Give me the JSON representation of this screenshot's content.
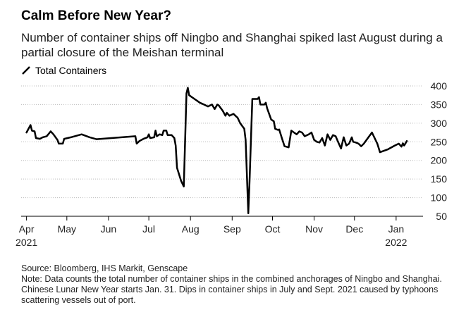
{
  "chart_data": {
    "type": "line",
    "title": "Calm Before New Year?",
    "subtitle": "Number of container ships off Ningbo and Shanghai spiked last August during a partial closure of the Meishan terminal",
    "ylim": [
      50,
      400
    ],
    "yticks": [
      50,
      100,
      150,
      200,
      250,
      300,
      350,
      400
    ],
    "xlim": [
      "2021-03-28",
      "2022-01-21"
    ],
    "xticks": [
      {
        "date": "2021-04-01",
        "label": "Apr",
        "sublabel": "2021"
      },
      {
        "date": "2021-05-01",
        "label": "May",
        "sublabel": ""
      },
      {
        "date": "2021-06-01",
        "label": "Jun",
        "sublabel": ""
      },
      {
        "date": "2021-07-01",
        "label": "Jul",
        "sublabel": ""
      },
      {
        "date": "2021-08-01",
        "label": "Aug",
        "sublabel": ""
      },
      {
        "date": "2021-09-01",
        "label": "Sep",
        "sublabel": ""
      },
      {
        "date": "2021-10-01",
        "label": "Oct",
        "sublabel": ""
      },
      {
        "date": "2021-11-01",
        "label": "Nov",
        "sublabel": ""
      },
      {
        "date": "2021-12-01",
        "label": "Dec",
        "sublabel": ""
      },
      {
        "date": "2022-01-01",
        "label": "Jan",
        "sublabel": "2022"
      }
    ],
    "grid": true,
    "legend_position": "top-left",
    "series": [
      {
        "name": "Total Containers",
        "color": "#000000",
        "points": [
          [
            "2021-04-01",
            275
          ],
          [
            "2021-04-04",
            295
          ],
          [
            "2021-04-05",
            280
          ],
          [
            "2021-04-07",
            278
          ],
          [
            "2021-04-08",
            260
          ],
          [
            "2021-04-11",
            258
          ],
          [
            "2021-04-13",
            262
          ],
          [
            "2021-04-16",
            265
          ],
          [
            "2021-04-19",
            278
          ],
          [
            "2021-04-21",
            270
          ],
          [
            "2021-04-24",
            255
          ],
          [
            "2021-04-25",
            245
          ],
          [
            "2021-04-28",
            245
          ],
          [
            "2021-04-29",
            258
          ],
          [
            "2021-05-04",
            262
          ],
          [
            "2021-05-12",
            270
          ],
          [
            "2021-05-18",
            262
          ],
          [
            "2021-05-23",
            257
          ],
          [
            "2021-06-21",
            265
          ],
          [
            "2021-06-22",
            245
          ],
          [
            "2021-06-24",
            252
          ],
          [
            "2021-06-27",
            258
          ],
          [
            "2021-06-30",
            262
          ],
          [
            "2021-07-01",
            270
          ],
          [
            "2021-07-02",
            260
          ],
          [
            "2021-07-05",
            262
          ],
          [
            "2021-07-06",
            280
          ],
          [
            "2021-07-07",
            265
          ],
          [
            "2021-07-09",
            270
          ],
          [
            "2021-07-11",
            268
          ],
          [
            "2021-07-12",
            280
          ],
          [
            "2021-07-14",
            280
          ],
          [
            "2021-07-15",
            268
          ],
          [
            "2021-07-18",
            268
          ],
          [
            "2021-07-20",
            260
          ],
          [
            "2021-07-21",
            240
          ],
          [
            "2021-07-22",
            180
          ],
          [
            "2021-07-25",
            145
          ],
          [
            "2021-07-27",
            130
          ],
          [
            "2021-07-29",
            380
          ],
          [
            "2021-07-30",
            395
          ],
          [
            "2021-07-31",
            375
          ],
          [
            "2021-08-04",
            365
          ],
          [
            "2021-08-08",
            355
          ],
          [
            "2021-08-11",
            350
          ],
          [
            "2021-08-14",
            345
          ],
          [
            "2021-08-17",
            350
          ],
          [
            "2021-08-19",
            338
          ],
          [
            "2021-08-21",
            350
          ],
          [
            "2021-08-22",
            348
          ],
          [
            "2021-08-25",
            333
          ],
          [
            "2021-08-27",
            320
          ],
          [
            "2021-08-28",
            328
          ],
          [
            "2021-08-30",
            320
          ],
          [
            "2021-09-02",
            325
          ],
          [
            "2021-09-04",
            318
          ],
          [
            "2021-09-05",
            315
          ],
          [
            "2021-09-07",
            300
          ],
          [
            "2021-09-09",
            290
          ],
          [
            "2021-09-10",
            285
          ],
          [
            "2021-09-11",
            255
          ],
          [
            "2021-09-13",
            58
          ],
          [
            "2021-09-14",
            150
          ],
          [
            "2021-09-16",
            365
          ],
          [
            "2021-09-20",
            365
          ],
          [
            "2021-09-21",
            370
          ],
          [
            "2021-09-22",
            350
          ],
          [
            "2021-09-25",
            350
          ],
          [
            "2021-09-26",
            355
          ],
          [
            "2021-09-27",
            340
          ],
          [
            "2021-09-30",
            310
          ],
          [
            "2021-10-02",
            305
          ],
          [
            "2021-10-03",
            285
          ],
          [
            "2021-10-05",
            282
          ],
          [
            "2021-10-06",
            283
          ],
          [
            "2021-10-08",
            260
          ],
          [
            "2021-10-10",
            238
          ],
          [
            "2021-10-13",
            235
          ],
          [
            "2021-10-15",
            280
          ],
          [
            "2021-10-17",
            275
          ],
          [
            "2021-10-19",
            270
          ],
          [
            "2021-10-21",
            278
          ],
          [
            "2021-10-23",
            275
          ],
          [
            "2021-10-25",
            265
          ],
          [
            "2021-10-28",
            270
          ],
          [
            "2021-10-30",
            275
          ],
          [
            "2021-11-01",
            255
          ],
          [
            "2021-11-03",
            250
          ],
          [
            "2021-11-05",
            248
          ],
          [
            "2021-11-07",
            260
          ],
          [
            "2021-11-09",
            240
          ],
          [
            "2021-11-11",
            270
          ],
          [
            "2021-11-13",
            255
          ],
          [
            "2021-11-15",
            268
          ],
          [
            "2021-11-17",
            265
          ],
          [
            "2021-11-19",
            248
          ],
          [
            "2021-11-21",
            232
          ],
          [
            "2021-11-23",
            262
          ],
          [
            "2021-11-25",
            240
          ],
          [
            "2021-11-27",
            245
          ],
          [
            "2021-11-29",
            262
          ],
          [
            "2021-11-30",
            250
          ],
          [
            "2021-12-02",
            248
          ],
          [
            "2021-12-04",
            245
          ],
          [
            "2021-12-06",
            238
          ],
          [
            "2021-12-08",
            245
          ],
          [
            "2021-12-10",
            255
          ],
          [
            "2021-12-12",
            265
          ],
          [
            "2021-12-14",
            275
          ],
          [
            "2021-12-16",
            260
          ],
          [
            "2021-12-18",
            245
          ],
          [
            "2021-12-20",
            222
          ],
          [
            "2021-12-26",
            230
          ],
          [
            "2021-12-31",
            240
          ],
          [
            "2022-01-03",
            245
          ],
          [
            "2022-01-05",
            237
          ],
          [
            "2022-01-06",
            246
          ],
          [
            "2022-01-07",
            240
          ],
          [
            "2022-01-09",
            252
          ]
        ]
      }
    ]
  },
  "footer": {
    "source": "Source: Bloomberg, IHS Markit, Genscape",
    "note": "Note: Data counts the total number of container ships in the combined anchorages of Ningbo and Shanghai. Chinese Lunar New Year starts Jan. 31. Dips in container ships in July and Sept. 2021 caused by typhoons scattering vessels out of port."
  }
}
